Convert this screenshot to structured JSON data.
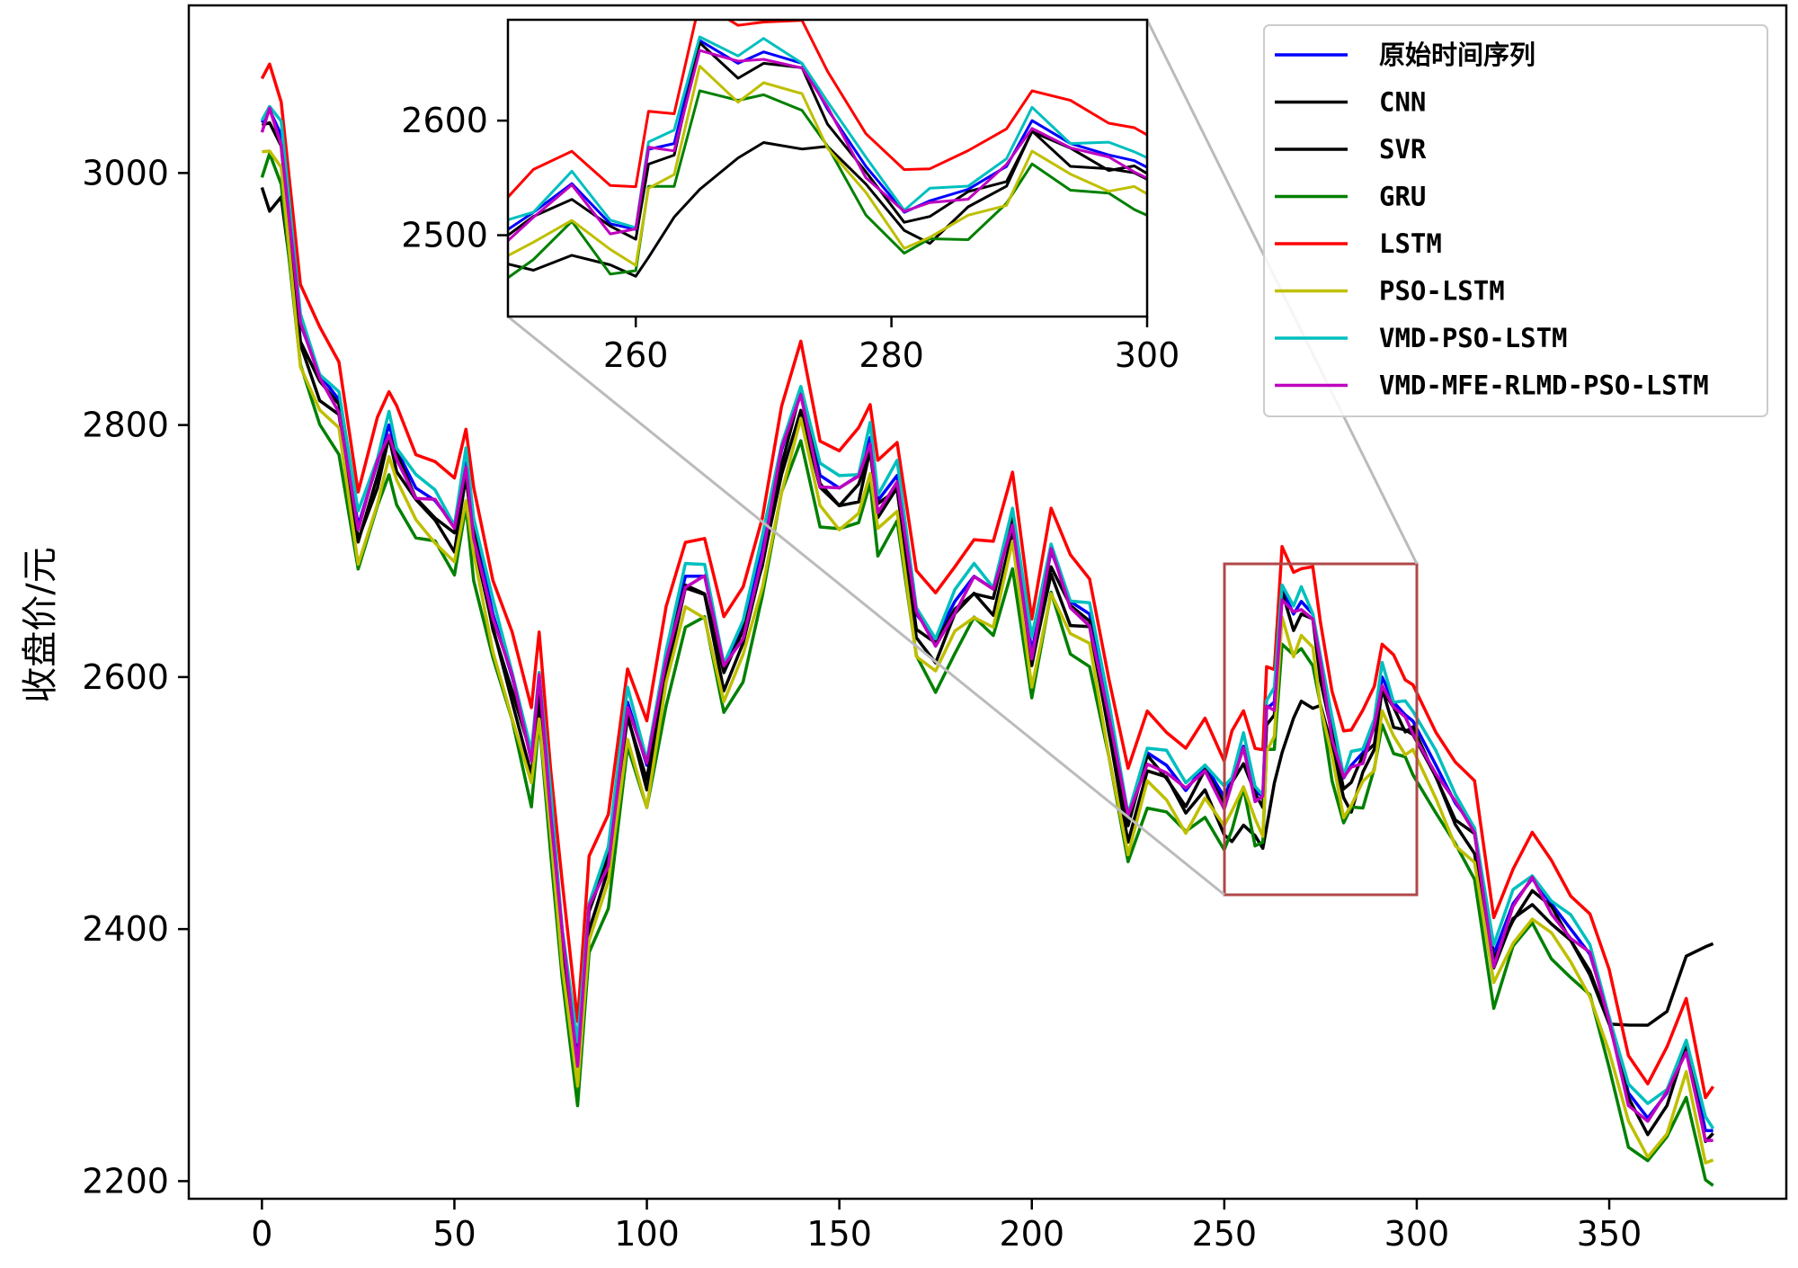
{
  "chart_data": {
    "type": "line",
    "ylabel": "收盘价/元",
    "xlabel": "",
    "xlim": [
      -19,
      396
    ],
    "ylim": [
      2186,
      3133
    ],
    "xticks": [
      0,
      50,
      100,
      150,
      200,
      250,
      300,
      350
    ],
    "yticks": [
      2200,
      2400,
      2600,
      2800,
      3000
    ],
    "legend_position": "top-right",
    "inset": {
      "xlim": [
        250,
        300
      ],
      "ylim": [
        2429,
        2688
      ],
      "xticks": [
        260,
        280,
        300
      ],
      "yticks": [
        2500,
        2600
      ]
    },
    "x": [
      0,
      2,
      5,
      10,
      15,
      20,
      25,
      30,
      33,
      35,
      40,
      45,
      50,
      53,
      55,
      60,
      65,
      70,
      72,
      75,
      78,
      82,
      85,
      90,
      95,
      100,
      105,
      110,
      115,
      120,
      125,
      130,
      135,
      140,
      145,
      150,
      155,
      158,
      160,
      165,
      170,
      175,
      180,
      185,
      190,
      195,
      200,
      205,
      210,
      215,
      220,
      225,
      230,
      235,
      240,
      245,
      250,
      252,
      255,
      258,
      260,
      261,
      263,
      265,
      268,
      270,
      273,
      275,
      278,
      281,
      283,
      286,
      289,
      291,
      294,
      297,
      299,
      305,
      310,
      315,
      320,
      325,
      330,
      335,
      340,
      345,
      350,
      355,
      360,
      365,
      370,
      375,
      377
    ],
    "series": [
      {
        "name": "原始时间序列",
        "color": "#0000ff",
        "values": [
          3040,
          3050,
          3030,
          2880,
          2840,
          2820,
          2720,
          2770,
          2800,
          2780,
          2750,
          2740,
          2720,
          2770,
          2720,
          2650,
          2600,
          2540,
          2600,
          2500,
          2400,
          2300,
          2420,
          2460,
          2580,
          2530,
          2620,
          2680,
          2680,
          2610,
          2640,
          2700,
          2780,
          2830,
          2760,
          2750,
          2760,
          2790,
          2740,
          2760,
          2650,
          2630,
          2660,
          2680,
          2670,
          2730,
          2620,
          2700,
          2660,
          2650,
          2570,
          2490,
          2540,
          2530,
          2510,
          2530,
          2505,
          2520,
          2545,
          2510,
          2505,
          2575,
          2580,
          2670,
          2650,
          2660,
          2650,
          2610,
          2560,
          2520,
          2530,
          2540,
          2560,
          2600,
          2580,
          2570,
          2565,
          2530,
          2500,
          2480,
          2380,
          2420,
          2440,
          2420,
          2400,
          2380,
          2330,
          2270,
          2250,
          2270,
          2310,
          2240,
          2240
        ]
      },
      {
        "name": "CNN",
        "color": "#000000",
        "bias": -8
      },
      {
        "name": "SVR",
        "color": "#000000",
        "bias": -15,
        "override": {
          "x": [
            0,
            2,
            5,
            8,
            250,
            255,
            260,
            263,
            266,
            268,
            272,
            275,
            278,
            281,
            283,
            350,
            355,
            360,
            365,
            370,
            375,
            377
          ],
          "values": [
            2990,
            2975,
            2975,
            2940,
            2470,
            2480,
            2470,
            2510,
            2555,
            2570,
            2580,
            2580,
            2540,
            2510,
            2490,
            2330,
            2320,
            2320,
            2340,
            2380,
            2380,
            2390
          ]
        }
      },
      {
        "name": "GRU",
        "color": "#008000",
        "bias": -38
      },
      {
        "name": "LSTM",
        "color": "#ff0000",
        "bias": 32
      },
      {
        "name": "PSO-LSTM",
        "color": "#bfbf00",
        "bias": -28
      },
      {
        "name": "VMD-PSO-LSTM",
        "color": "#00bfbf",
        "bias": 6
      },
      {
        "name": "VMD-MFE-RLMD-PSO-LSTM",
        "color": "#bf00bf",
        "bias": -4
      }
    ]
  }
}
